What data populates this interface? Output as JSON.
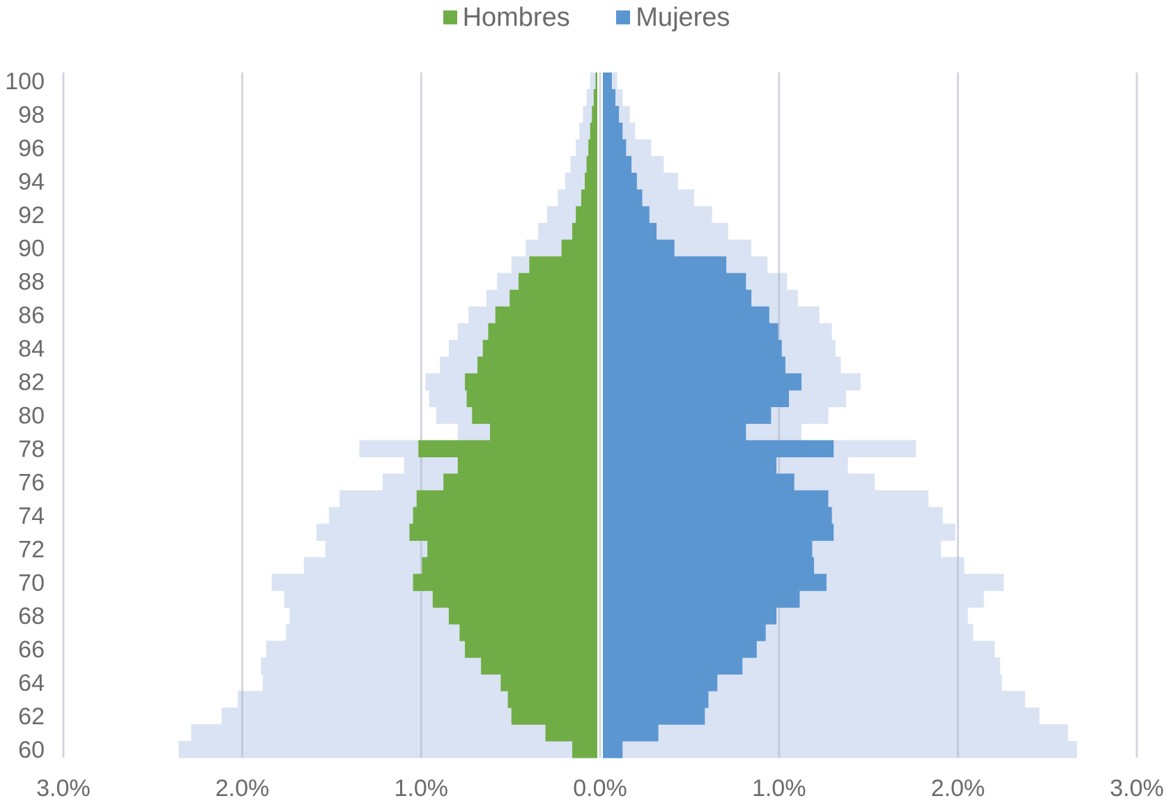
{
  "chart_data": {
    "type": "bar",
    "orientation": "horizontal",
    "subtype": "population-pyramid",
    "title": "",
    "xlabel": "",
    "ylabel": "",
    "legend_position": "top",
    "grid": true,
    "xlim": [
      -3.0,
      3.0
    ],
    "x_ticks": [
      -3,
      -2,
      -1,
      0,
      1,
      2,
      3
    ],
    "x_tick_labels": [
      "3.0%",
      "2.0%",
      "1.0%",
      "0.0%",
      "1.0%",
      "2.0%",
      "3.0%"
    ],
    "y_tick_labels": [
      "100",
      "98",
      "96",
      "94",
      "92",
      "90",
      "88",
      "86",
      "84",
      "82",
      "80",
      "78",
      "76",
      "74",
      "72",
      "70",
      "68",
      "66",
      "64",
      "62",
      "60"
    ],
    "ages": [
      100,
      99,
      98,
      97,
      96,
      95,
      94,
      93,
      92,
      91,
      90,
      89,
      88,
      87,
      86,
      85,
      84,
      83,
      82,
      81,
      80,
      79,
      78,
      77,
      76,
      75,
      74,
      73,
      72,
      71,
      70,
      69,
      68,
      67,
      66,
      65,
      64,
      63,
      62,
      61,
      60
    ],
    "series": [
      {
        "name": "Hombres",
        "color": "#70ad47",
        "values": [
          0.01,
          0.02,
          0.03,
          0.04,
          0.05,
          0.06,
          0.07,
          0.09,
          0.12,
          0.14,
          0.2,
          0.38,
          0.44,
          0.49,
          0.57,
          0.61,
          0.64,
          0.67,
          0.74,
          0.73,
          0.7,
          0.6,
          1.0,
          0.78,
          0.86,
          1.01,
          1.03,
          1.05,
          0.95,
          0.98,
          1.03,
          0.92,
          0.83,
          0.77,
          0.74,
          0.65,
          0.54,
          0.5,
          0.48,
          0.29,
          0.14
        ]
      },
      {
        "name": "Mujeres",
        "color": "#5b96d1",
        "values": [
          0.05,
          0.07,
          0.09,
          0.11,
          0.13,
          0.16,
          0.19,
          0.22,
          0.26,
          0.3,
          0.4,
          0.69,
          0.8,
          0.83,
          0.93,
          0.98,
          1.0,
          1.02,
          1.11,
          1.04,
          0.94,
          0.8,
          1.29,
          0.97,
          1.07,
          1.26,
          1.28,
          1.29,
          1.17,
          1.18,
          1.25,
          1.1,
          0.97,
          0.91,
          0.86,
          0.78,
          0.64,
          0.59,
          0.57,
          0.31,
          0.11
        ]
      }
    ],
    "background_series": {
      "color": "#dae3f3",
      "left": [
        0.04,
        0.06,
        0.08,
        0.1,
        0.12,
        0.15,
        0.18,
        0.22,
        0.28,
        0.33,
        0.4,
        0.48,
        0.56,
        0.62,
        0.72,
        0.78,
        0.83,
        0.88,
        0.96,
        0.94,
        0.9,
        0.78,
        1.33,
        1.08,
        1.2,
        1.44,
        1.5,
        1.57,
        1.52,
        1.64,
        1.82,
        1.75,
        1.72,
        1.74,
        1.85,
        1.88,
        1.87,
        2.01,
        2.1,
        2.27,
        2.34
      ],
      "right": [
        0.08,
        0.11,
        0.15,
        0.18,
        0.27,
        0.34,
        0.42,
        0.51,
        0.61,
        0.7,
        0.83,
        0.92,
        1.03,
        1.09,
        1.21,
        1.28,
        1.3,
        1.33,
        1.44,
        1.36,
        1.26,
        1.11,
        1.75,
        1.37,
        1.52,
        1.82,
        1.9,
        1.97,
        1.89,
        2.02,
        2.24,
        2.13,
        2.04,
        2.07,
        2.19,
        2.22,
        2.23,
        2.36,
        2.44,
        2.6,
        2.65
      ]
    }
  }
}
